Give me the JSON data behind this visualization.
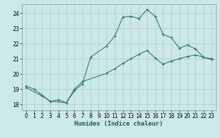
{
  "xlabel": "Humidex (Indice chaleur)",
  "background_color": "#cce8e8",
  "line_color": "#2a7a70",
  "curve1_x": [
    0,
    1,
    2,
    3,
    4,
    5,
    6,
    7,
    8,
    10,
    11,
    12,
    13,
    14,
    15,
    16,
    17,
    18,
    19,
    20,
    21,
    22,
    23
  ],
  "curve1_y": [
    19.2,
    19.0,
    18.6,
    18.2,
    18.3,
    18.1,
    18.9,
    19.35,
    21.1,
    21.85,
    22.5,
    23.75,
    23.8,
    23.65,
    24.25,
    23.8,
    22.6,
    22.4,
    21.7,
    21.9,
    21.65,
    21.1,
    21.0
  ],
  "curve2_x": [
    0,
    2,
    3,
    5,
    6,
    7,
    10,
    11,
    12,
    13,
    14,
    15,
    16,
    17,
    18,
    19,
    20,
    21,
    22,
    23
  ],
  "curve2_y": [
    19.1,
    18.55,
    18.2,
    18.1,
    19.0,
    19.5,
    20.05,
    20.35,
    20.7,
    21.0,
    21.3,
    21.55,
    21.05,
    20.65,
    20.85,
    21.0,
    21.15,
    21.25,
    21.1,
    20.95
  ],
  "xlim": [
    -0.5,
    23.5
  ],
  "ylim": [
    17.6,
    24.6
  ],
  "yticks": [
    18,
    19,
    20,
    21,
    22,
    23,
    24
  ],
  "xticks": [
    0,
    1,
    2,
    3,
    4,
    5,
    6,
    7,
    8,
    9,
    10,
    11,
    12,
    13,
    14,
    15,
    16,
    17,
    18,
    19,
    20,
    21,
    22,
    23
  ],
  "grid_color": "#aacaca",
  "tick_fontsize": 5.5,
  "label_fontsize": 6.5
}
